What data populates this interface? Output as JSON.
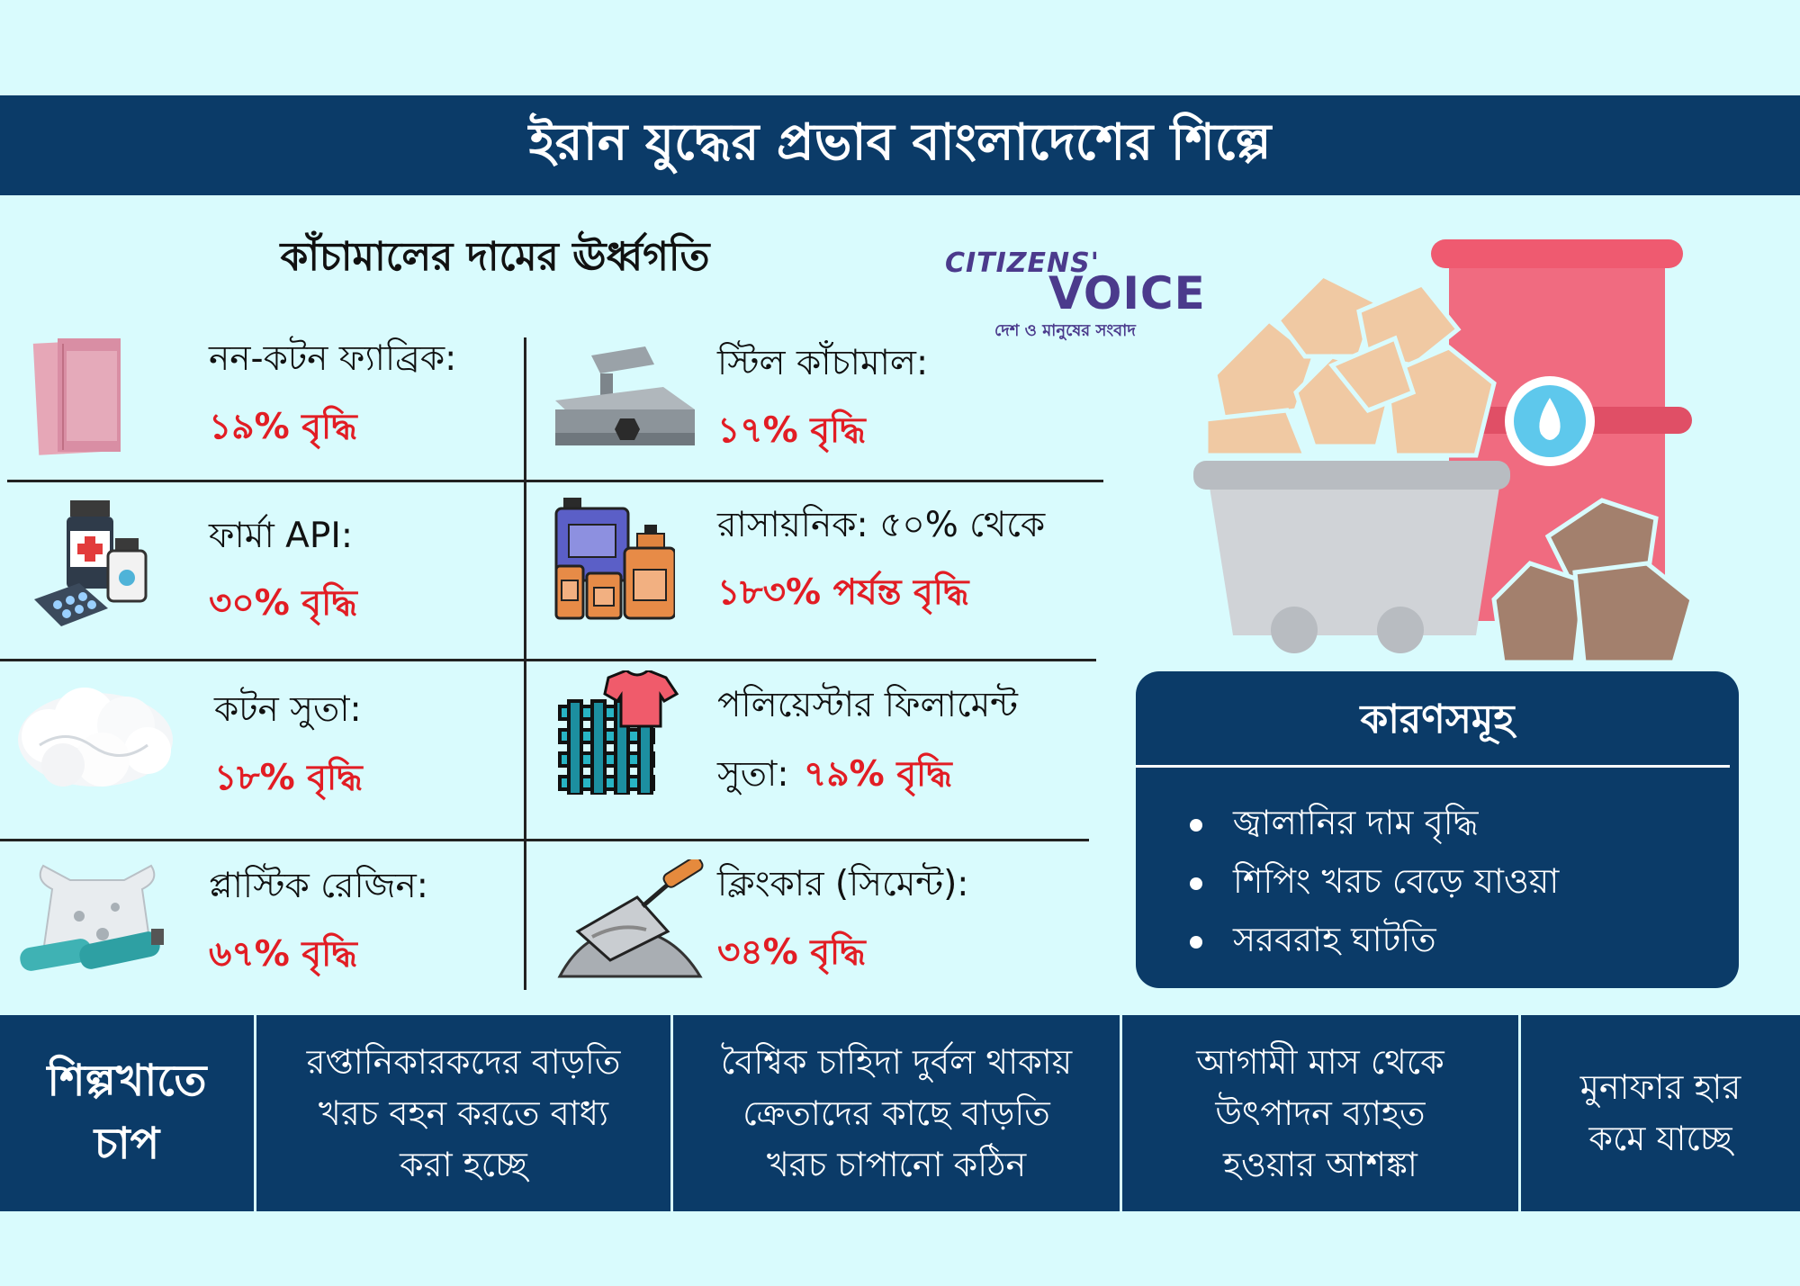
{
  "header": {
    "title": "ইরান যুদ্ধের প্রভাব বাংলাদেশের শিল্পে"
  },
  "subtitle": "কাঁচামালের দামের ঊর্ধ্বগতি",
  "logo": {
    "line1": "CITIZENS'",
    "line2": "VOICE",
    "tagline": "দেশ ও মানুষের সংবাদ"
  },
  "items": [
    {
      "label": "নন-কটন ফ্যাব্রিক:",
      "value": "১৯% বৃদ্ধি",
      "icon": "fabric-icon"
    },
    {
      "label": "স্টিল কাঁচামাল:",
      "value": "১৭% বৃদ্ধি",
      "icon": "steel-beams-icon"
    },
    {
      "label": "ফার্মা API:",
      "value": "৩০% বৃদ্ধি",
      "icon": "medicine-icon"
    },
    {
      "label": "রাসায়নিক: ৫০% থেকে",
      "value": "১৮৩% পর্যন্ত বৃদ্ধি",
      "icon": "chemical-containers-icon"
    },
    {
      "label": "কটন সুতা:",
      "value": "১৮% বৃদ্ধি",
      "icon": "cotton-icon"
    },
    {
      "label": "পলিয়েস্টার ফিলামেন্ট",
      "label2": "সুতা:",
      "value": "৭৯% বৃদ্ধি",
      "icon": "textile-weave-icon"
    },
    {
      "label": "প্লাস্টিক রেজিন:",
      "value": "৬৭% বৃদ্ধি",
      "icon": "plastic-waste-icon"
    },
    {
      "label": "ক্লিংকার (সিমেন্ট):",
      "value": "৩৪% বৃদ্ধি",
      "icon": "cement-trowel-icon"
    }
  ],
  "reasons": {
    "title": "কারণসমূহ",
    "list": [
      "জ্বালানির দাম বৃদ্ধি",
      "শিপিং খরচ বেড়ে যাওয়া",
      "সরবরাহ ঘাটতি"
    ]
  },
  "bottom": {
    "heading": "শিল্পখাতে\nচাপ",
    "cells": [
      "রপ্তানিকারকদের বাড়তি\nখরচ বহন করতে বাধ্য\nকরা হচ্ছে",
      "বৈশ্বিক চাহিদা দুর্বল থাকায়\nক্রেতাদের কাছে বাড়তি\nখরচ চাপানো কঠিন",
      "আগামী মাস থেকে\nউৎপাদন ব্যাহত\nহওয়ার আশঙ্কা",
      "মুনাফার হার\nকমে যাচ্ছে"
    ]
  },
  "colors": {
    "navy": "#0b3b68",
    "background": "#d9fbfd",
    "red": "#e21d24"
  }
}
